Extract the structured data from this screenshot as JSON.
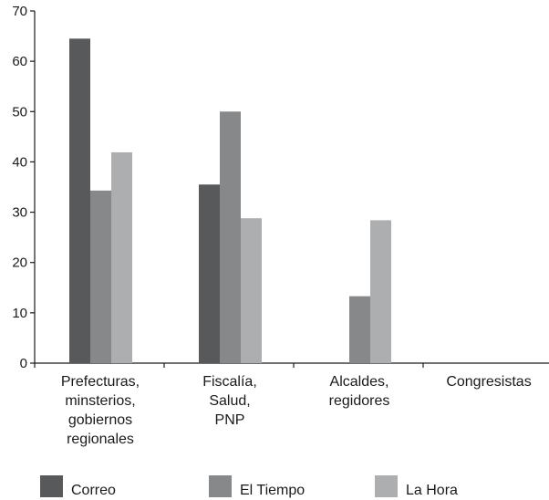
{
  "chart_data": {
    "type": "bar",
    "title": "",
    "xlabel": "",
    "ylabel": "",
    "ylim": [
      0,
      70
    ],
    "yticks": [
      0,
      10,
      20,
      30,
      40,
      50,
      60,
      70
    ],
    "grid": false,
    "legend_position": "bottom",
    "categories": [
      [
        "Prefecturas,",
        "minsterios,",
        "gobiernos",
        "regionales"
      ],
      [
        "Fiscalía,",
        "Salud,",
        "PNP"
      ],
      [
        "Alcaldes,",
        "regidores"
      ],
      [
        "Congresistas"
      ]
    ],
    "series": [
      {
        "name": "Correo",
        "color": "#58595b",
        "values": [
          64.5,
          35.5,
          0,
          0
        ]
      },
      {
        "name": "El Tiempo",
        "color": "#87888a",
        "values": [
          34.3,
          50,
          13.3,
          0
        ]
      },
      {
        "name": "La Hora",
        "color": "#adaeb0",
        "values": [
          41.9,
          28.8,
          28.4,
          0
        ]
      }
    ]
  }
}
